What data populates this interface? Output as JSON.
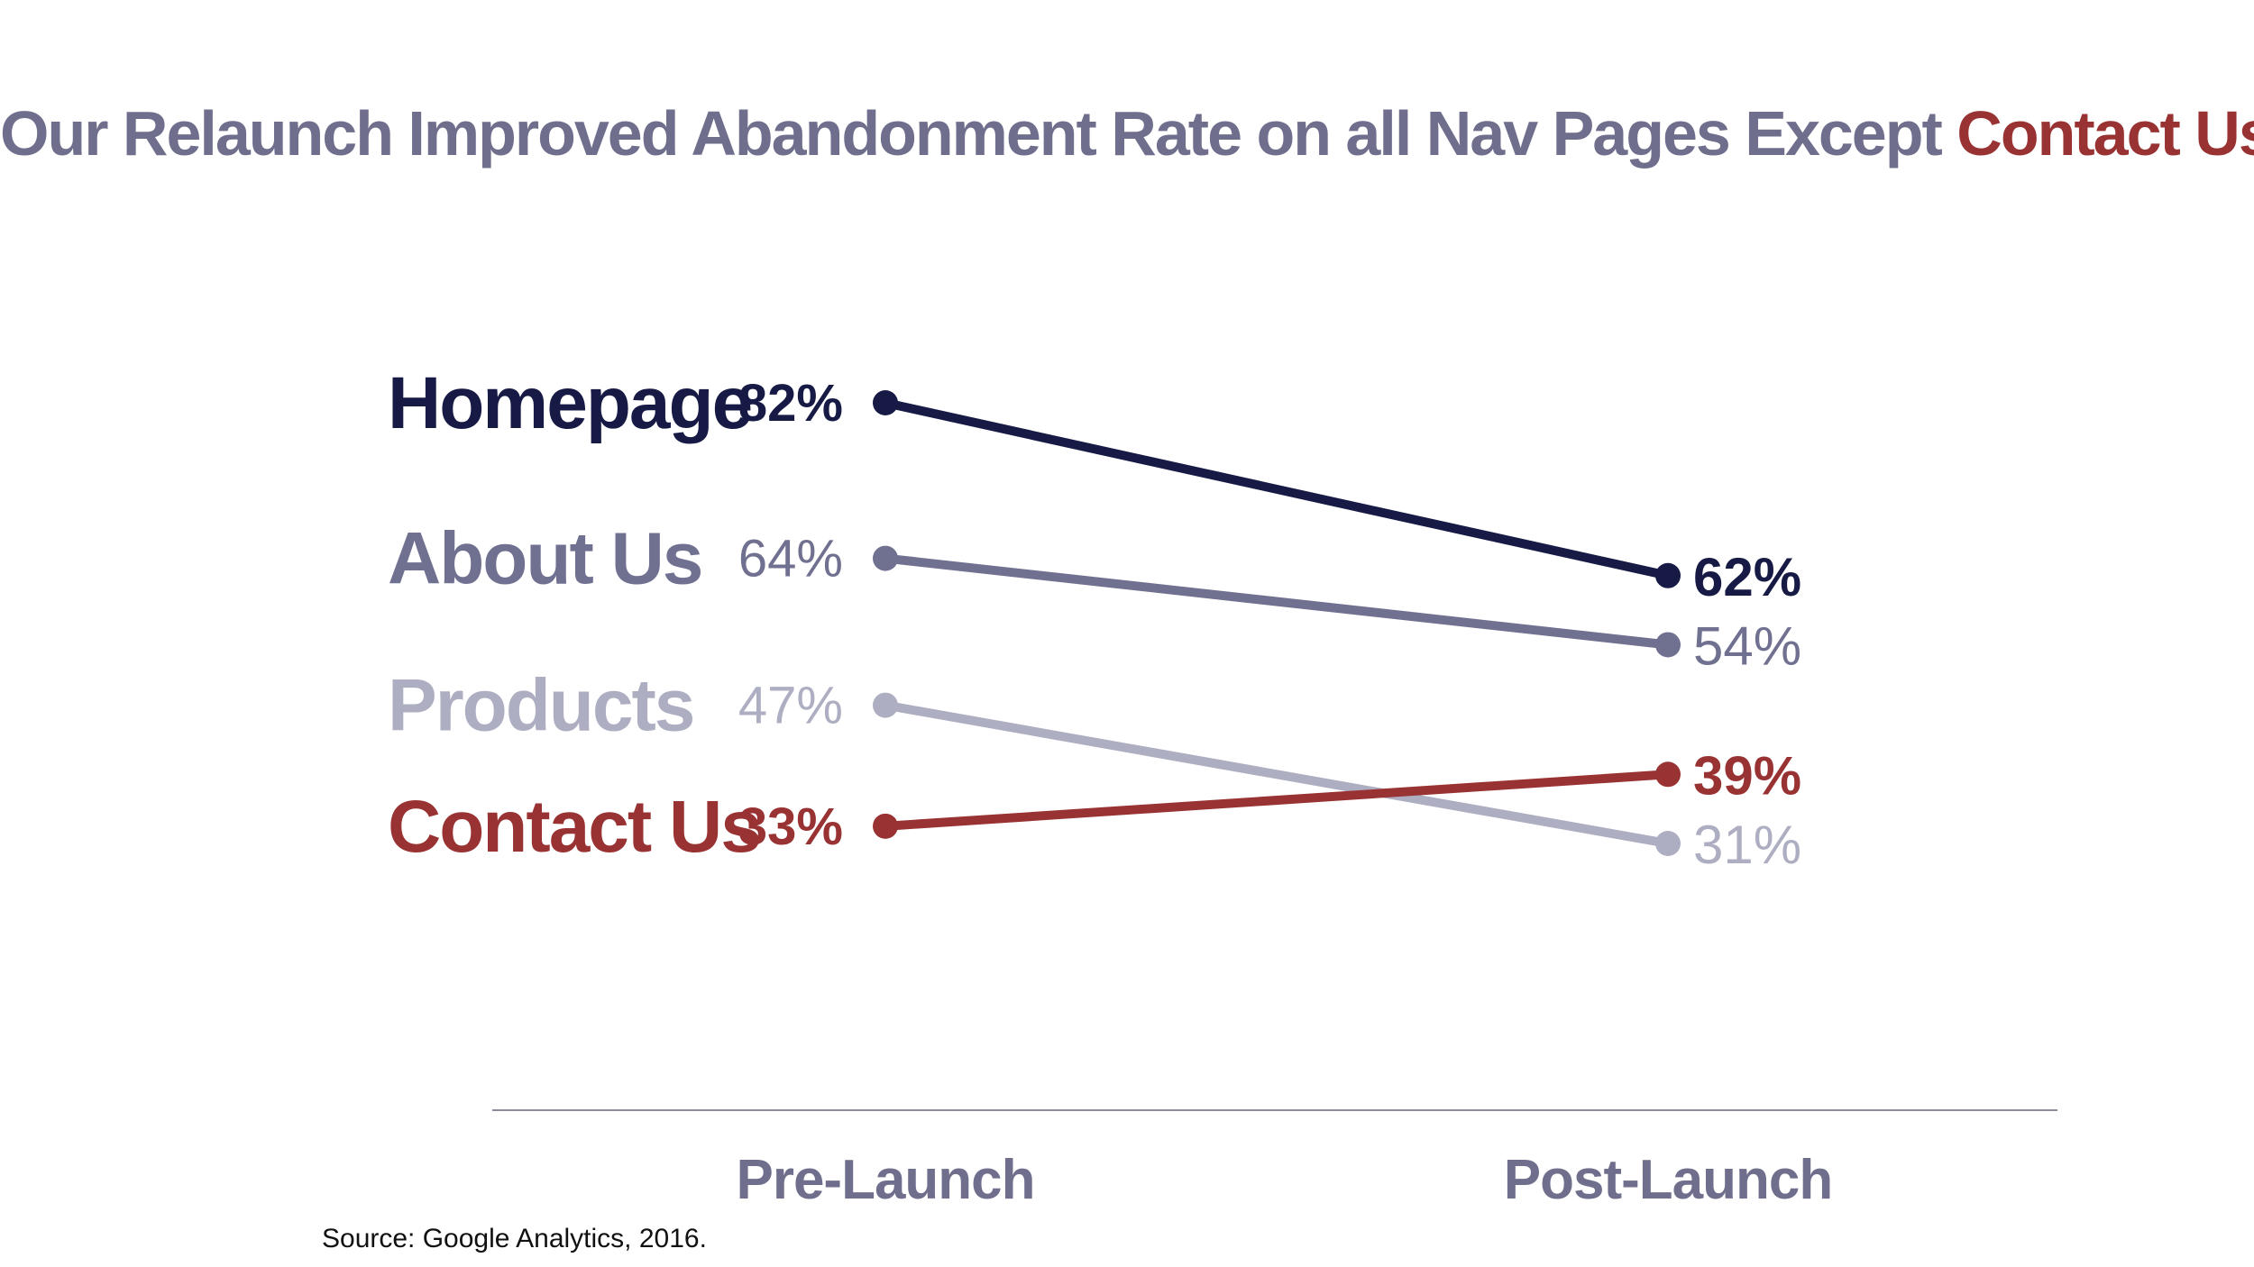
{
  "title": {
    "text": "Our Relaunch Improved Abandonment Rate on all Nav Pages Except ",
    "highlight": "Contact Us"
  },
  "source": "Source: Google Analytics, 2016.",
  "chart_data": {
    "type": "line",
    "title": "Our Relaunch Improved Abandonment Rate on all Nav Pages Except Contact Us",
    "categories": [
      "Pre-Launch",
      "Post-Launch"
    ],
    "xlabel": "",
    "ylabel": "",
    "ylim": [
      31,
      82
    ],
    "grid": false,
    "series": [
      {
        "name": "Homepage",
        "values": [
          82,
          62
        ],
        "labels": [
          "82%",
          "62%"
        ],
        "color": "#161a44",
        "emphasis": true
      },
      {
        "name": "About Us",
        "values": [
          64,
          54
        ],
        "labels": [
          "64%",
          "54%"
        ],
        "color": "#707090",
        "emphasis": false
      },
      {
        "name": "Products",
        "values": [
          47,
          31
        ],
        "labels": [
          "47%",
          "31%"
        ],
        "color": "#aeaec2",
        "emphasis": false
      },
      {
        "name": "Contact Us",
        "values": [
          33,
          39
        ],
        "labels": [
          "33%",
          "39%"
        ],
        "color": "#993333",
        "emphasis": true
      }
    ],
    "axis_color": "#8c8c9c",
    "category_label_color": "#6f6f8d"
  }
}
